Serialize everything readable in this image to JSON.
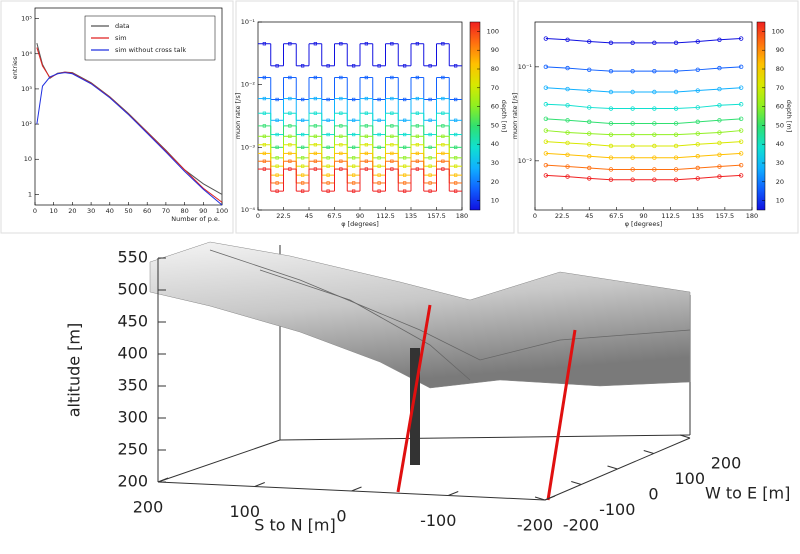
{
  "chart_data": [
    {
      "type": "line",
      "ylog": true,
      "xlabel": "Number of p.e.",
      "ylabel": "entries",
      "xlim": [
        0,
        100
      ],
      "xticks": [
        0,
        10,
        20,
        30,
        40,
        50,
        60,
        70,
        80,
        90,
        100
      ],
      "ylim": [
        0.5,
        200000
      ],
      "yticks": [
        1,
        10,
        {
          "value": 100,
          "label": "10²"
        },
        {
          "value": 1000,
          "label": "10³"
        },
        {
          "value": 10000,
          "label": "10⁴"
        },
        {
          "value": 100000,
          "label": "10⁵"
        }
      ],
      "legend": "top-right",
      "x": [
        1,
        4,
        8,
        12,
        16,
        20,
        30,
        40,
        50,
        60,
        70,
        80,
        90,
        100
      ],
      "series": [
        {
          "name": "data",
          "color": "#555555",
          "values": [
            20000,
            5000,
            2000,
            2800,
            3000,
            2900,
            1500,
            600,
            200,
            60,
            18,
            5,
            2,
            1
          ]
        },
        {
          "name": "sim",
          "color": "#e02020",
          "values": [
            15000,
            4500,
            2100,
            2700,
            3000,
            2800,
            1450,
            580,
            190,
            58,
            17,
            5,
            1.5,
            0.6
          ]
        },
        {
          "name": "sim without cross talk",
          "color": "#2030e0",
          "values": [
            100,
            1200,
            2200,
            2700,
            2900,
            2700,
            1400,
            560,
            185,
            55,
            16,
            4.5,
            1.4,
            0.5
          ]
        }
      ]
    },
    {
      "type": "step",
      "ylog": true,
      "xlabel": "φ [degrees]",
      "ylabel": "muon rate [/s]",
      "xlim": [
        0,
        180
      ],
      "xticks": [
        0,
        22.5,
        45,
        67.5,
        90,
        112.5,
        135,
        157.5,
        180
      ],
      "ylim": [
        0.0001,
        0.1
      ],
      "yticks": [
        {
          "value": 0.1,
          "label": "10⁻¹"
        },
        {
          "value": 0.01,
          "label": "10⁻²"
        },
        {
          "value": 0.001,
          "label": "10⁻³"
        },
        {
          "value": 0.0001,
          "label": "10⁻⁴"
        }
      ],
      "colorbar": {
        "label": "depth [m]",
        "lim": [
          5,
          105
        ],
        "ticks": [
          10,
          20,
          30,
          40,
          50,
          60,
          70,
          80,
          90,
          100
        ]
      },
      "x": [
        5.625,
        16.875,
        28.125,
        39.375,
        50.625,
        61.875,
        73.125,
        84.375,
        95.625,
        106.875,
        118.125,
        129.375,
        140.625,
        151.875,
        163.125,
        174.375
      ],
      "series": [
        {
          "color": "#1010e0",
          "values": [
            0.045,
            0.02,
            0.045,
            0.02,
            0.045,
            0.02,
            0.045,
            0.02,
            0.045,
            0.02,
            0.045,
            0.02,
            0.045,
            0.02,
            0.045,
            0.02
          ]
        },
        {
          "color": "#1060ff",
          "values": [
            0.013,
            0.0058,
            0.013,
            0.0058,
            0.013,
            0.0058,
            0.013,
            0.0058,
            0.013,
            0.0058,
            0.013,
            0.0058,
            0.013,
            0.0058,
            0.013,
            0.0058
          ]
        },
        {
          "color": "#10b0ff",
          "values": [
            0.006,
            0.0027,
            0.006,
            0.0027,
            0.006,
            0.0027,
            0.006,
            0.0027,
            0.006,
            0.0027,
            0.006,
            0.0027,
            0.006,
            0.0027,
            0.006,
            0.0027
          ]
        },
        {
          "color": "#10e0d0",
          "values": [
            0.0035,
            0.0016,
            0.0035,
            0.0016,
            0.0035,
            0.0016,
            0.0035,
            0.0016,
            0.0035,
            0.0016,
            0.0035,
            0.0016,
            0.0035,
            0.0016,
            0.0035,
            0.0016
          ]
        },
        {
          "color": "#30e070",
          "values": [
            0.0022,
            0.001,
            0.0022,
            0.001,
            0.0022,
            0.001,
            0.0022,
            0.001,
            0.0022,
            0.001,
            0.0022,
            0.001,
            0.0022,
            0.001,
            0.0022,
            0.001
          ]
        },
        {
          "color": "#90f020",
          "values": [
            0.0015,
            0.00068,
            0.0015,
            0.00068,
            0.0015,
            0.00068,
            0.0015,
            0.00068,
            0.0015,
            0.00068,
            0.0015,
            0.00068,
            0.0015,
            0.00068,
            0.0015,
            0.00068
          ]
        },
        {
          "color": "#d8e800",
          "values": [
            0.0011,
            0.0005,
            0.0011,
            0.0005,
            0.0011,
            0.0005,
            0.0011,
            0.0005,
            0.0011,
            0.0005,
            0.0011,
            0.0005,
            0.0011,
            0.0005,
            0.0011,
            0.0005
          ]
        },
        {
          "color": "#ffc000",
          "values": [
            0.0008,
            0.00036,
            0.0008,
            0.00036,
            0.0008,
            0.00036,
            0.0008,
            0.00036,
            0.0008,
            0.00036,
            0.0008,
            0.00036,
            0.0008,
            0.00036,
            0.0008,
            0.00036
          ]
        },
        {
          "color": "#ff7010",
          "values": [
            0.0006,
            0.00027,
            0.0006,
            0.00027,
            0.0006,
            0.00027,
            0.0006,
            0.00027,
            0.0006,
            0.00027,
            0.0006,
            0.00027,
            0.0006,
            0.00027,
            0.0006,
            0.00027
          ]
        },
        {
          "color": "#f02020",
          "values": [
            0.00045,
            0.0002,
            0.00045,
            0.0002,
            0.00045,
            0.0002,
            0.00045,
            0.0002,
            0.00045,
            0.0002,
            0.00045,
            0.0002,
            0.00045,
            0.0002,
            0.00045,
            0.0002
          ]
        }
      ]
    },
    {
      "type": "line",
      "markers": true,
      "ylog": true,
      "xlabel": "φ [degrees]",
      "ylabel": "muon rate [/s]",
      "xlim": [
        0,
        180
      ],
      "xticks": [
        0,
        22.5,
        45,
        67.5,
        90,
        112.5,
        135,
        157.5,
        180
      ],
      "ylim": [
        0.003,
        0.3
      ],
      "yticks": [
        {
          "value": 0.1,
          "label": "10⁻¹"
        },
        {
          "value": 0.01,
          "label": "10⁻²"
        }
      ],
      "colorbar": {
        "label": "depth [m]",
        "lim": [
          5,
          105
        ],
        "ticks": [
          10,
          20,
          30,
          40,
          50,
          60,
          70,
          80,
          90,
          100
        ]
      },
      "x": [
        9,
        27,
        45,
        63,
        81,
        99,
        117,
        135,
        153,
        171
      ],
      "series": [
        {
          "color": "#1010e0",
          "values": [
            0.2,
            0.194,
            0.186,
            0.18,
            0.18,
            0.18,
            0.18,
            0.186,
            0.194,
            0.2
          ]
        },
        {
          "color": "#1060ff",
          "values": [
            0.1,
            0.097,
            0.093,
            0.09,
            0.09,
            0.09,
            0.09,
            0.093,
            0.097,
            0.1
          ]
        },
        {
          "color": "#10b0ff",
          "values": [
            0.06,
            0.058,
            0.056,
            0.054,
            0.054,
            0.054,
            0.054,
            0.056,
            0.058,
            0.06
          ]
        },
        {
          "color": "#10e0d0",
          "values": [
            0.04,
            0.039,
            0.037,
            0.036,
            0.036,
            0.036,
            0.036,
            0.037,
            0.039,
            0.04
          ]
        },
        {
          "color": "#30e070",
          "values": [
            0.028,
            0.027,
            0.026,
            0.025,
            0.025,
            0.025,
            0.025,
            0.026,
            0.027,
            0.028
          ]
        },
        {
          "color": "#90f020",
          "values": [
            0.021,
            0.02,
            0.0195,
            0.019,
            0.019,
            0.019,
            0.019,
            0.0195,
            0.02,
            0.021
          ]
        },
        {
          "color": "#d8e800",
          "values": [
            0.016,
            0.0155,
            0.015,
            0.0144,
            0.0144,
            0.0144,
            0.0144,
            0.015,
            0.0155,
            0.016
          ]
        },
        {
          "color": "#ffc000",
          "values": [
            0.012,
            0.0116,
            0.0112,
            0.0108,
            0.0108,
            0.0108,
            0.0108,
            0.0112,
            0.0116,
            0.012
          ]
        },
        {
          "color": "#ff7010",
          "values": [
            0.009,
            0.0087,
            0.0084,
            0.0081,
            0.0081,
            0.0081,
            0.0081,
            0.0084,
            0.0087,
            0.009
          ]
        },
        {
          "color": "#f02020",
          "values": [
            0.007,
            0.0068,
            0.0065,
            0.0063,
            0.0063,
            0.0063,
            0.0063,
            0.0065,
            0.0068,
            0.007
          ]
        }
      ]
    },
    {
      "type": "surface3d",
      "zlabel": "altitude [m]",
      "zlim": [
        200,
        550
      ],
      "zticks": [
        200,
        250,
        300,
        350,
        400,
        450,
        500,
        550
      ],
      "xlabel": "S to N [m]",
      "xlim": [
        200,
        -200
      ],
      "xticks": [
        200,
        100,
        0,
        -100,
        -200
      ],
      "ylabel": "W to E [m]",
      "ylim": [
        -200,
        200
      ],
      "yticks": [
        -200,
        -100,
        0,
        100,
        200
      ]
    }
  ]
}
